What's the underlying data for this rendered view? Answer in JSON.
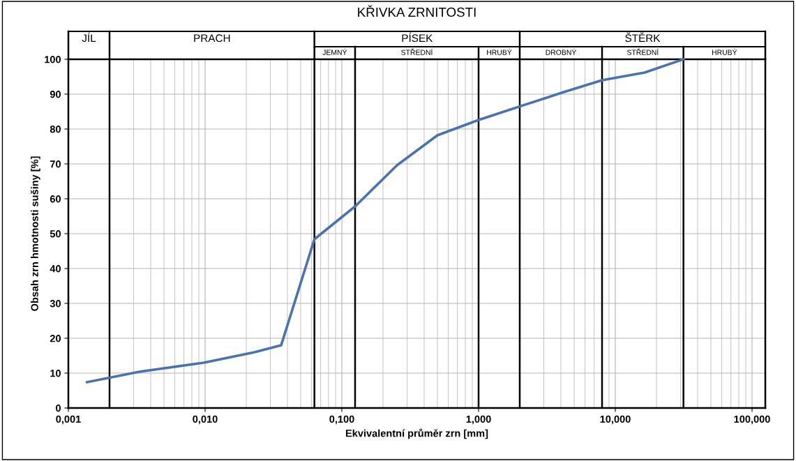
{
  "chart_data": {
    "type": "line",
    "title": "KŘIVKA ZRNITOSTI",
    "xlabel": "Ekvivalentní průměr zrn [mm]",
    "ylabel": "Obsah zrn hmotnosti sušiny [%]",
    "x": [
      0.00137,
      0.00331,
      0.0098,
      0.023,
      0.036,
      0.063,
      0.125,
      0.253,
      0.5,
      1.0,
      4.2,
      8.0,
      16.4,
      31.5
    ],
    "series": [
      {
        "color": "#4a72b0",
        "values": [
          7.4,
          10.4,
          13,
          16,
          18,
          48.4,
          57.8,
          69.6,
          78.2,
          82.6,
          90.6,
          94,
          96.2,
          100
        ]
      }
    ],
    "log": "x",
    "xlim": [
      0.001,
      125
    ],
    "ylim": [
      0,
      100
    ],
    "xticks": [
      {
        "value": 0.001,
        "label": "0,001"
      },
      {
        "value": 0.01,
        "label": "0,010"
      },
      {
        "value": 0.1,
        "label": "0,100"
      },
      {
        "value": 1,
        "label": "1,000"
      },
      {
        "value": 10,
        "label": "10,000"
      },
      {
        "value": 100,
        "label": "100,000"
      }
    ],
    "yticks": [
      0,
      10,
      20,
      30,
      40,
      50,
      60,
      70,
      80,
      90,
      100
    ],
    "grid": true,
    "marker": "none",
    "line_style": "solid",
    "ref_lines": [
      {
        "axis": "x",
        "value": 0.002,
        "color": "#000000"
      },
      {
        "axis": "x",
        "value": 0.063,
        "color": "#000000"
      },
      {
        "axis": "x",
        "value": 0.125,
        "color": "#000000"
      },
      {
        "axis": "x",
        "value": 1,
        "color": "#000000"
      },
      {
        "axis": "x",
        "value": 2,
        "color": "#000000"
      },
      {
        "axis": "x",
        "value": 8,
        "color": "#000000"
      },
      {
        "axis": "x",
        "value": 31.5,
        "color": "#000000"
      }
    ],
    "annotations": [
      "JÍL",
      "PRACH",
      "PÍSEK",
      "ŠTĚRK",
      "JEMNÝ",
      "STŘEDNÍ",
      "HRUBÝ",
      "DROBNÝ",
      "STŘEDNÍ",
      "HRUBÝ"
    ]
  }
}
